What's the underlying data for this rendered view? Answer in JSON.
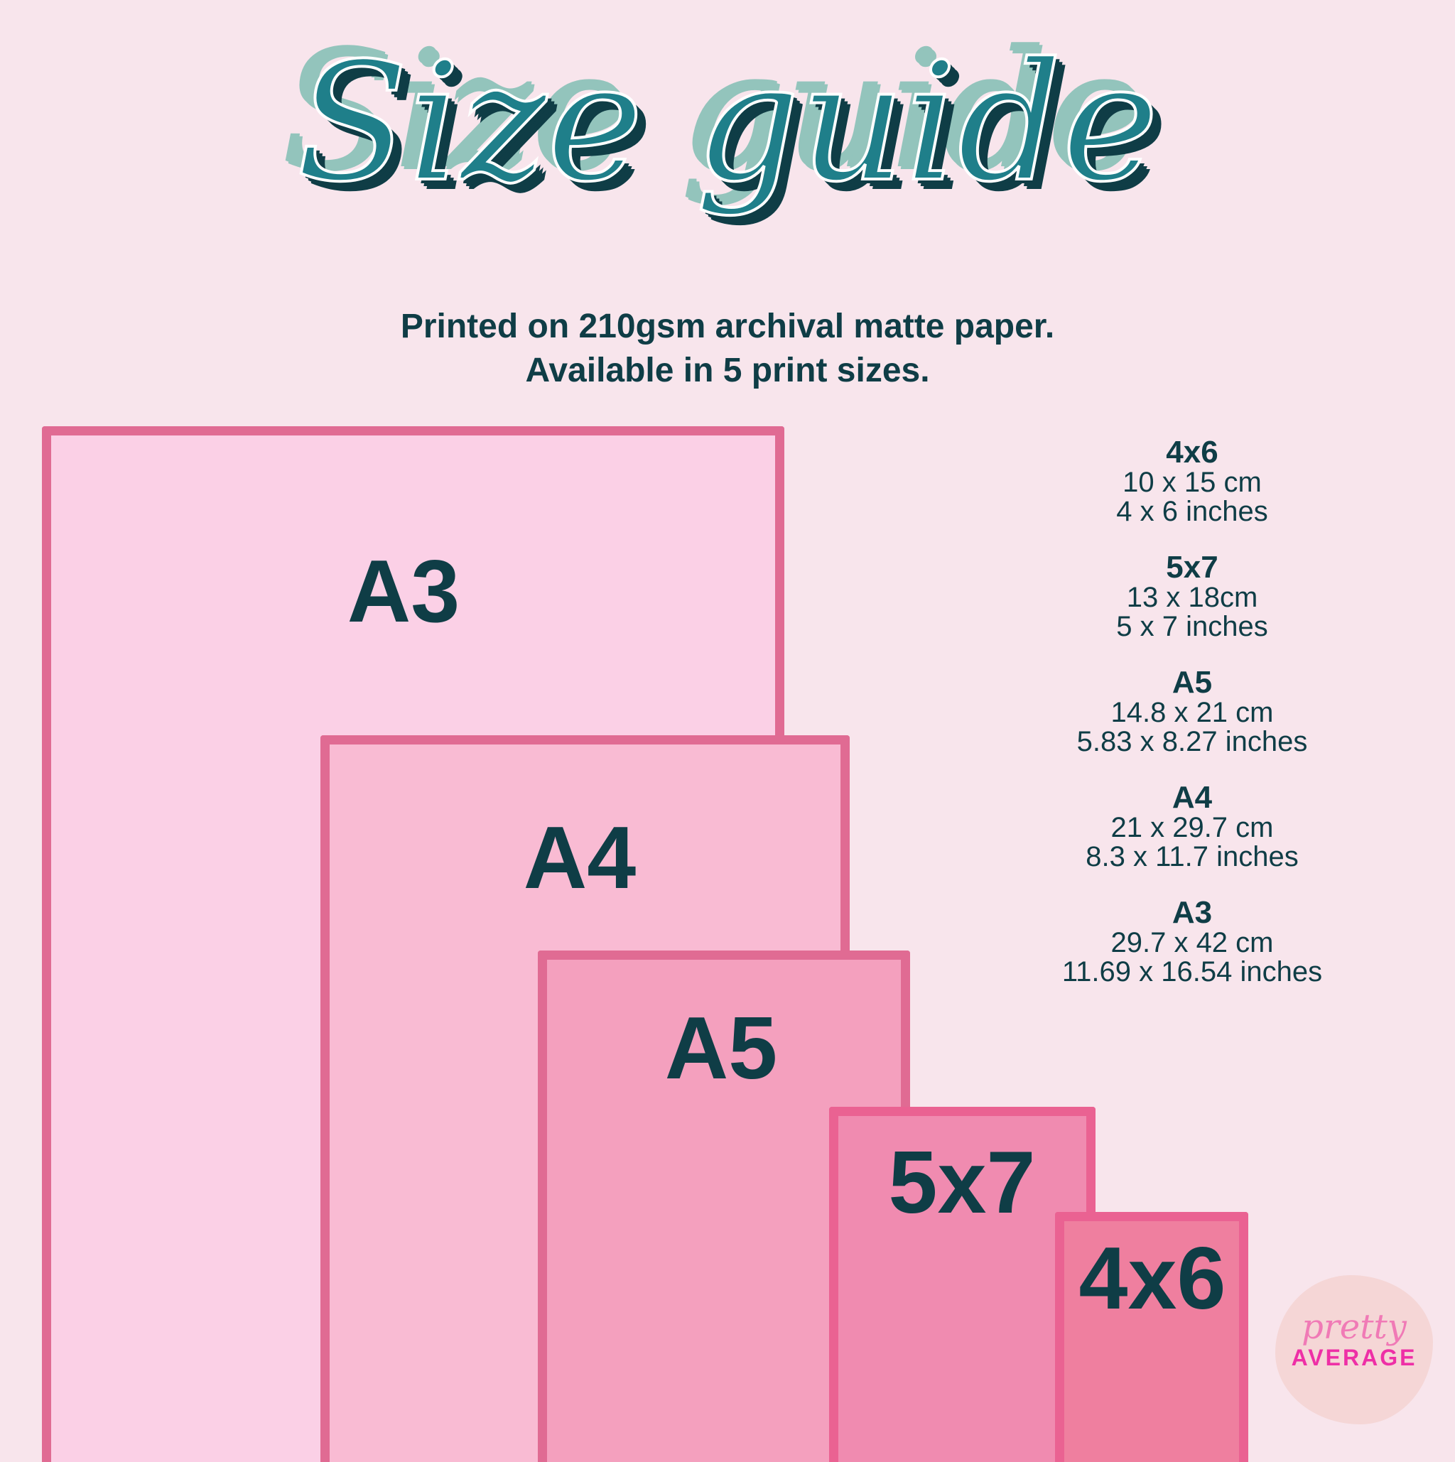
{
  "title": "Size guide",
  "subtitle": [
    "Printed on 210gsm archival matte paper.",
    "Available in 5 print sizes."
  ],
  "rectangles": [
    {
      "label": "A3",
      "fill": "#fbd0e6"
    },
    {
      "label": "A4",
      "fill": "#f9bbd3"
    },
    {
      "label": "A5",
      "fill": "#f4a0be"
    },
    {
      "label": "5x7",
      "fill": "#f08bb0"
    },
    {
      "label": "4x6",
      "fill": "#ef7f9f"
    }
  ],
  "border_color": "#e06b93",
  "sizes": [
    {
      "name": "4x6",
      "cm": "10 x 15 cm",
      "inches": "4 x 6 inches"
    },
    {
      "name": "5x7",
      "cm": "13 x 18cm",
      "inches": "5 x 7 inches"
    },
    {
      "name": "A5",
      "cm": "14.8 x 21 cm",
      "inches": "5.83 x 8.27 inches"
    },
    {
      "name": "A4",
      "cm": "21 x 29.7 cm",
      "inches": "8.3 x 11.7 inches"
    },
    {
      "name": "A3",
      "cm": "29.7 x 42 cm",
      "inches": "11.69 x 16.54 inches"
    }
  ],
  "logo": {
    "script": "pretty",
    "bold": "AVERAGE"
  }
}
